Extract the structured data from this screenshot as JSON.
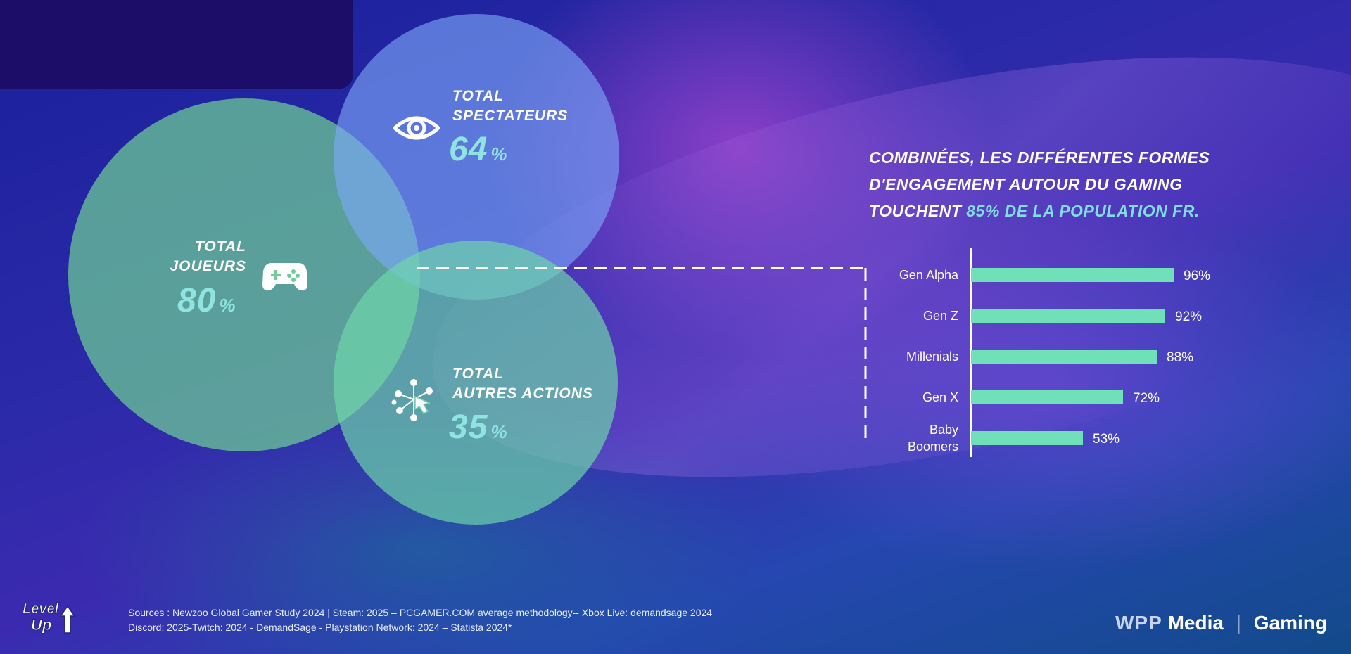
{
  "venn": {
    "spectateurs": {
      "label_line1": "TOTAL",
      "label_line2": "SPECTATEURS",
      "value": "64",
      "sign": "%"
    },
    "joueurs": {
      "label_line1": "TOTAL",
      "label_line2": "JOUEURS",
      "value": "80",
      "sign": "%"
    },
    "autres": {
      "label_line1": "TOTAL",
      "label_line2": "AUTRES ACTIONS",
      "value": "35",
      "sign": "%"
    }
  },
  "headline": {
    "line1": "COMBINÉES, LES DIFFÉRENTES FORMES",
    "line2": "D'ENGAGEMENT AUTOUR DU GAMING",
    "line3_prefix": "TOUCHENT ",
    "line3_highlight": "85% DE LA POPULATION FR."
  },
  "chart_data": {
    "type": "bar",
    "orientation": "horizontal",
    "categories": [
      "Gen Alpha",
      "Gen Z",
      "Millenials",
      "Gen X",
      "Baby Boomers"
    ],
    "values": [
      96,
      92,
      88,
      72,
      53
    ],
    "value_labels": [
      "96%",
      "92%",
      "88%",
      "72%",
      "53%"
    ],
    "xlim": [
      0,
      100
    ],
    "title": "",
    "xlabel": "",
    "ylabel": "",
    "grid": false,
    "bar_color": "#6fe0b8"
  },
  "sources": {
    "line1": "Sources : Newzoo Global Gamer Study 2024 | Steam: 2025 – PCGAMER.COM average methodology-- Xbox Live: demandsage 2024",
    "line2": "Discord: 2025-Twitch:  2024 - DemandSage - Playstation Network: 2024 – Statista 2024*"
  },
  "logos": {
    "levelup_line1": "Level",
    "levelup_line2": "Up",
    "brand_wpp": "WPP",
    "brand_media": "Media",
    "brand_sep": "|",
    "brand_gaming": "Gaming"
  },
  "colors": {
    "accent_teal": "#8fe3e0",
    "bar": "#6fe0b8"
  },
  "icons": [
    "eye-icon",
    "gamepad-icon",
    "network-hand-icon",
    "levelup-logo"
  ]
}
